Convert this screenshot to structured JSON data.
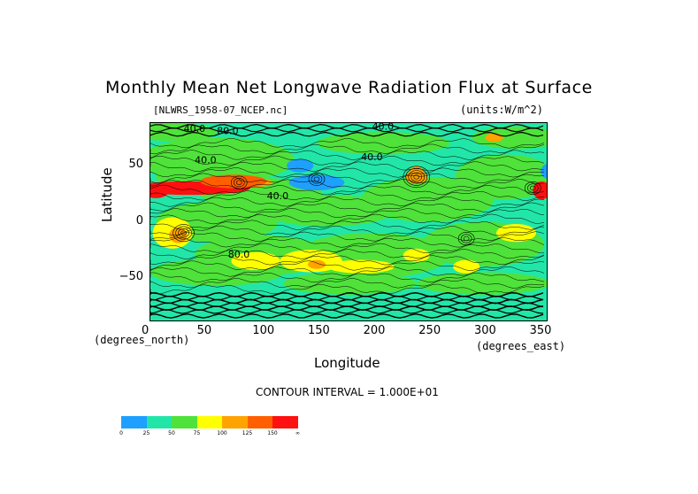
{
  "chart_data": {
    "type": "heatmap",
    "title": "Monthly Mean Net Longwave Radiation Flux at Surface",
    "file_label": "[NLWRS_1958-07_NCEP.nc]",
    "units_label": "(units:W/m^2)",
    "xlabel": "Longitude",
    "ylabel": "Latitude",
    "x_unit": "(degrees_east)",
    "y_unit": "(degrees_north)",
    "xlim": [
      0,
      357.5
    ],
    "ylim": [
      -88,
      88
    ],
    "x_ticks": [
      "0",
      "50",
      "100",
      "150",
      "200",
      "250",
      "300",
      "350"
    ],
    "y_ticks": [
      "50",
      "0",
      "−50"
    ],
    "contour_interval": "CONTOUR INTERVAL = 1.000E+01",
    "contour_labels": [
      "40.0",
      "40.0",
      "40.0",
      "40.0",
      "40.0",
      "80.0",
      "80.0"
    ],
    "colorbar": {
      "levels": [
        "0",
        "25",
        "50",
        "75",
        "100",
        "125",
        "150",
        "∞"
      ],
      "colors": [
        "#1ea0ff",
        "#22e6a8",
        "#4fe23a",
        "#ffff00",
        "#ffa300",
        "#ff5f00",
        "#ff1010"
      ]
    }
  }
}
